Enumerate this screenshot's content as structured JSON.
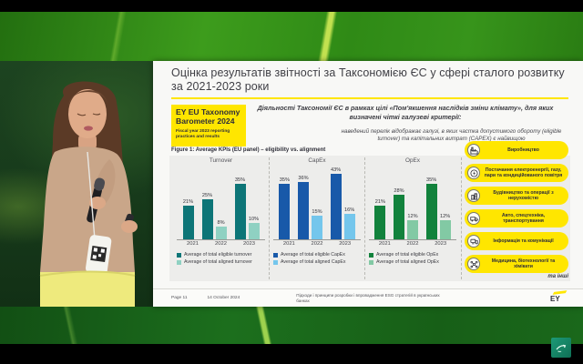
{
  "slide": {
    "title": "Оцінка результатів звітності за Таксономією ЄС у сфері сталого розвитку за 2021-2023 роки",
    "badge": {
      "title": "EY EU Taxonomy Barometer 2024",
      "subtitle": "Fiscal year 2023 reporting practices and results"
    },
    "intro": "Діяльності Таксономії ЄС в рамках цілі «Пом'якшення наслідків зміни клімату», для яких визначені чіткі галузеві критерії:",
    "note": "наведений перелік відображає галузі, в яких частка допустимого обороту (eligible turnover) та капітальних витрат (CAPEX) є найвищою",
    "figure_caption": "Figure 1: Average KPIs (EU panel) – eligibility vs. alignment",
    "accent_yellow": "#ffe600",
    "sectors": [
      {
        "icon": "factory-icon",
        "label": "Виробництво"
      },
      {
        "icon": "energy-icon",
        "label": "Постачання електроенергії, газу, пари та кондиційованого повітря"
      },
      {
        "icon": "building-icon",
        "label": "Будівництво та операції з нерухомістю"
      },
      {
        "icon": "truck-icon",
        "label": "Авто, спецтехніка, транспортування"
      },
      {
        "icon": "communications-icon",
        "label": "Інформація та комунікації"
      },
      {
        "icon": "molecule-icon",
        "label": "Медицина, біотехнології та хімікати"
      }
    ],
    "sectors_more": "та інші",
    "footer": {
      "page": "Page 11",
      "date": "14 October 2024",
      "deck_title": "Підходи і принципи розробки і впровадження ESG стратегій в українських банках",
      "logo": "EY"
    }
  },
  "chart_data": [
    {
      "type": "bar",
      "title": "Turnover",
      "categories": [
        "2021",
        "2022",
        "2023"
      ],
      "ylim": [
        0,
        45
      ],
      "unit": "%",
      "grid": false,
      "legend_position": "bottom",
      "series": [
        {
          "name": "Average of total eligible turnover",
          "color": "#0d7577",
          "values": [
            21,
            25,
            35
          ],
          "labels": [
            "21%",
            "25%",
            "35%"
          ]
        },
        {
          "name": "Average of total aligned turnover",
          "color": "#8fd1c2",
          "values": [
            null,
            8,
            10
          ],
          "labels": [
            "",
            "8%",
            "10%"
          ]
        }
      ]
    },
    {
      "type": "bar",
      "title": "CapEx",
      "categories": [
        "2021",
        "2022",
        "2023"
      ],
      "ylim": [
        0,
        45
      ],
      "unit": "%",
      "grid": false,
      "legend_position": "bottom",
      "series": [
        {
          "name": "Average of total eligible CapEx",
          "color": "#1859a9",
          "values": [
            35,
            36,
            43
          ],
          "labels": [
            "35%",
            "36%",
            "43%"
          ]
        },
        {
          "name": "Average of total aligned CapEx",
          "color": "#74c6ec",
          "values": [
            null,
            15,
            16
          ],
          "labels": [
            "",
            "15%",
            "16%"
          ]
        }
      ]
    },
    {
      "type": "bar",
      "title": "OpEx",
      "categories": [
        "2021",
        "2022",
        "2023"
      ],
      "ylim": [
        0,
        45
      ],
      "unit": "%",
      "grid": false,
      "legend_position": "bottom",
      "series": [
        {
          "name": "Average of total eligible OpEx",
          "color": "#12823c",
          "values": [
            21,
            28,
            35
          ],
          "labels": [
            "21%",
            "28%",
            "35%"
          ]
        },
        {
          "name": "Average of total aligned OpEx",
          "color": "#82c9a4",
          "values": [
            null,
            12,
            12
          ],
          "labels": [
            "",
            "12%",
            "12%"
          ]
        }
      ]
    }
  ]
}
